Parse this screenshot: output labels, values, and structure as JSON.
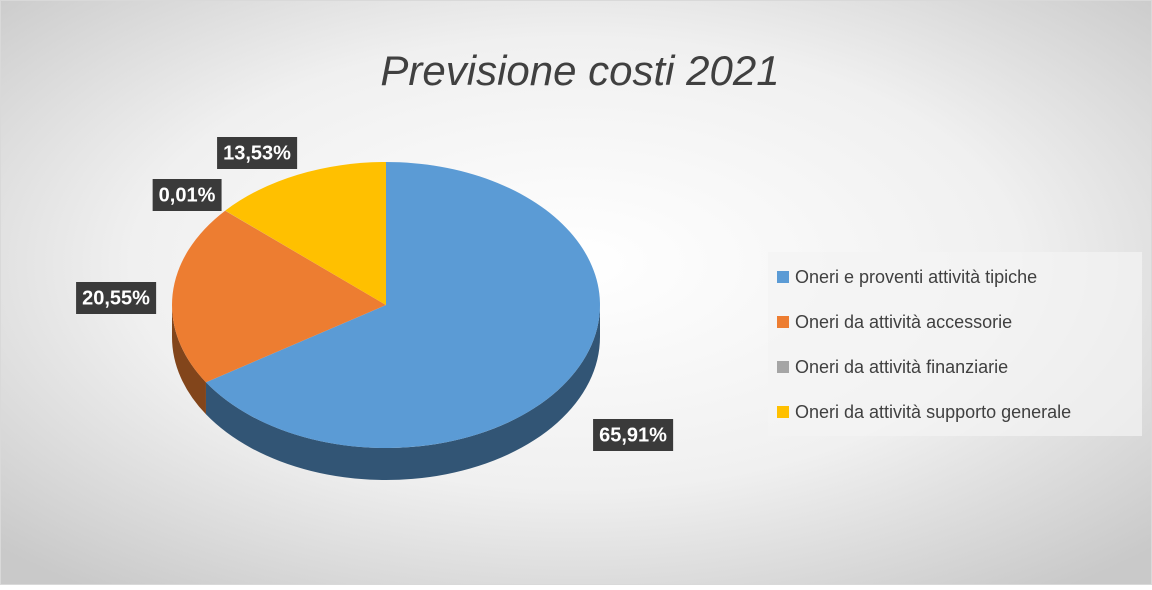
{
  "chart_data": {
    "type": "pie",
    "title": "Previsione costi 2021",
    "categories": [
      "Oneri e proventi attività tipiche",
      "Oneri da attività accessorie",
      "Oneri da attività finanziarie",
      "Oneri da attività supporto generale"
    ],
    "values": [
      65.91,
      20.55,
      0.01,
      13.53
    ],
    "value_labels": [
      "65,91%",
      "20,55%",
      "0,01%",
      "13,53%"
    ],
    "colors": [
      "#5b9bd5",
      "#ed7d31",
      "#a5a5a5",
      "#ffc000"
    ]
  }
}
